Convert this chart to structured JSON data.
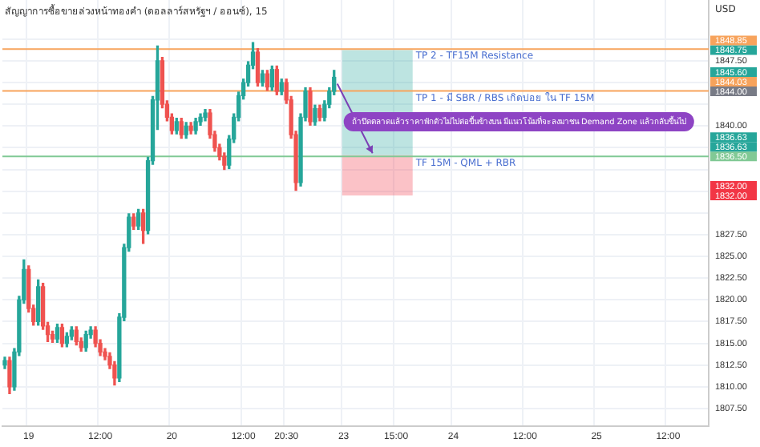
{
  "chart_data": {
    "type": "candlestick",
    "title": "สัญญาการซื้อขายล่วงหน้าทองคำ (ดอลลาร์สหรัฐฯ / ออนซ์), 15",
    "categories": [
      null,
      null,
      null,
      null,
      null,
      "19",
      null,
      null,
      null,
      null,
      null,
      null,
      null,
      null,
      null,
      null,
      null,
      null,
      null,
      null,
      "12:00",
      null,
      null,
      null,
      null,
      null,
      null,
      null,
      null,
      null,
      null,
      null,
      null,
      null,
      null,
      "20",
      null,
      null,
      null,
      null,
      null,
      null,
      null,
      null,
      null,
      null,
      null,
      null,
      null,
      null,
      "12:00",
      null,
      null,
      null,
      null,
      null,
      null,
      null,
      null,
      "20:30",
      null,
      null,
      null,
      null,
      null,
      null,
      null,
      null,
      null,
      null,
      null,
      "23",
      null,
      null,
      null,
      null,
      null,
      null,
      null,
      null,
      null,
      null,
      "15:00",
      null,
      null,
      null,
      null,
      null,
      null,
      null,
      null,
      null,
      null,
      null,
      "24",
      null,
      null,
      null,
      null,
      null,
      null,
      null,
      null,
      null,
      null,
      null,
      null,
      null,
      null,
      "12:00",
      null,
      null,
      null,
      null,
      null,
      null,
      null,
      null,
      null,
      null,
      null,
      null,
      null,
      null,
      "25",
      null,
      null,
      null,
      null,
      null,
      null,
      null,
      null,
      null,
      null,
      null,
      null,
      null,
      null,
      "12:00",
      null,
      null,
      null,
      null,
      null,
      null,
      null,
      null
    ],
    "ohlc": [
      [
        1812.5,
        1813.4,
        1812.1,
        1813.0
      ],
      [
        1813.0,
        1813.4,
        1809.2,
        1810.0
      ],
      [
        1810.0,
        1814.4,
        1809.6,
        1814.0
      ],
      [
        1814.0,
        1820.4,
        1813.6,
        1820.0
      ],
      [
        1820.0,
        1824.6,
        1819.6,
        1823.5
      ],
      [
        1823.5,
        1823.9,
        1818.6,
        1819.0
      ],
      [
        1819.0,
        1819.4,
        1817.1,
        1817.5
      ],
      [
        1817.5,
        1822.3,
        1817.1,
        1821.5
      ],
      [
        1821.5,
        1821.9,
        1816.6,
        1817.0
      ],
      [
        1817.0,
        1817.4,
        1815.2,
        1816.0
      ],
      [
        1816.0,
        1816.4,
        1815.1,
        1815.5
      ],
      [
        1815.5,
        1817.2,
        1815.1,
        1816.8
      ],
      [
        1816.8,
        1817.2,
        1814.6,
        1815.0
      ],
      [
        1815.0,
        1816.2,
        1814.6,
        1815.8
      ],
      [
        1815.8,
        1816.9,
        1815.4,
        1816.5
      ],
      [
        1816.5,
        1816.9,
        1814.8,
        1815.2
      ],
      [
        1815.2,
        1815.6,
        1814.1,
        1814.5
      ],
      [
        1814.5,
        1816.4,
        1814.1,
        1816.0
      ],
      [
        1816.0,
        1816.9,
        1815.6,
        1816.5
      ],
      [
        1816.5,
        1816.9,
        1814.6,
        1815.0
      ],
      [
        1815.0,
        1815.4,
        1813.6,
        1814.0
      ],
      [
        1814.0,
        1814.4,
        1813.1,
        1813.5
      ],
      [
        1813.5,
        1813.9,
        1812.1,
        1812.5
      ],
      [
        1812.5,
        1812.9,
        1810.2,
        1811.0
      ],
      [
        1811.0,
        1818.4,
        1810.6,
        1818.0
      ],
      [
        1818.0,
        1826.4,
        1817.6,
        1826.0
      ],
      [
        1826.0,
        1829.9,
        1825.6,
        1829.5
      ],
      [
        1829.5,
        1829.9,
        1828.1,
        1828.5
      ],
      [
        1828.5,
        1830.4,
        1828.1,
        1830.0
      ],
      [
        1830.0,
        1830.4,
        1826.5,
        1828.0
      ],
      [
        1828.0,
        1836.4,
        1827.6,
        1836.0
      ],
      [
        1836.0,
        1843.4,
        1835.6,
        1843.0
      ],
      [
        1843.0,
        1849.2,
        1839.6,
        1847.5
      ],
      [
        1847.5,
        1847.9,
        1842.1,
        1842.5
      ],
      [
        1842.5,
        1842.9,
        1840.6,
        1841.0
      ],
      [
        1841.0,
        1841.4,
        1839.1,
        1839.5
      ],
      [
        1839.5,
        1840.9,
        1839.1,
        1840.5
      ],
      [
        1840.5,
        1840.9,
        1838.6,
        1839.0
      ],
      [
        1839.0,
        1840.4,
        1838.6,
        1840.0
      ],
      [
        1840.0,
        1840.4,
        1839.1,
        1839.5
      ],
      [
        1839.5,
        1840.9,
        1839.1,
        1840.5
      ],
      [
        1840.5,
        1841.4,
        1840.1,
        1841.0
      ],
      [
        1841.0,
        1841.9,
        1840.6,
        1841.5
      ],
      [
        1841.5,
        1841.9,
        1838.6,
        1839.0
      ],
      [
        1839.0,
        1839.4,
        1837.1,
        1837.5
      ],
      [
        1837.5,
        1837.9,
        1836.1,
        1836.5
      ],
      [
        1836.5,
        1836.9,
        1835.0,
        1835.5
      ],
      [
        1835.5,
        1838.9,
        1835.1,
        1838.5
      ],
      [
        1838.5,
        1841.4,
        1838.1,
        1841.0
      ],
      [
        1841.0,
        1843.9,
        1840.6,
        1843.5
      ],
      [
        1843.5,
        1845.4,
        1843.1,
        1845.0
      ],
      [
        1845.0,
        1847.4,
        1844.6,
        1847.0
      ],
      [
        1847.0,
        1849.6,
        1846.6,
        1848.5
      ],
      [
        1848.5,
        1848.9,
        1844.6,
        1845.0
      ],
      [
        1845.0,
        1846.4,
        1844.6,
        1846.0
      ],
      [
        1846.0,
        1846.4,
        1844.1,
        1844.5
      ],
      [
        1844.5,
        1846.9,
        1844.1,
        1846.5
      ],
      [
        1846.5,
        1846.9,
        1843.6,
        1844.0
      ],
      [
        1844.0,
        1845.4,
        1843.6,
        1845.0
      ],
      [
        1845.0,
        1845.4,
        1842.6,
        1843.0
      ],
      [
        1843.0,
        1843.4,
        1838.6,
        1839.0
      ],
      [
        1839.0,
        1839.4,
        1832.6,
        1833.5
      ],
      [
        1833.5,
        1841.4,
        1833.1,
        1841.0
      ],
      [
        1841.0,
        1844.4,
        1840.6,
        1844.0
      ],
      [
        1844.0,
        1844.4,
        1840.1,
        1840.5
      ],
      [
        1840.5,
        1842.4,
        1840.1,
        1842.0
      ],
      [
        1842.0,
        1842.4,
        1840.6,
        1841.0
      ],
      [
        1841.0,
        1842.9,
        1840.6,
        1842.5
      ],
      [
        1842.5,
        1844.4,
        1842.1,
        1844.0
      ],
      [
        1844.0,
        1846.4,
        1843.6,
        1845.6
      ],
      null,
      null,
      null,
      null,
      null,
      null,
      null,
      null,
      null,
      null,
      null,
      null,
      null,
      null,
      null,
      null,
      null,
      null,
      null,
      null,
      null,
      null,
      null,
      null,
      null,
      null,
      null,
      null,
      null,
      null,
      null,
      null,
      null,
      null,
      null,
      null,
      null,
      null,
      null,
      null,
      null,
      null,
      null,
      null,
      null,
      null,
      null,
      null,
      null,
      null,
      null,
      null,
      null,
      null,
      null,
      null,
      null,
      null,
      null,
      null,
      null,
      null,
      null,
      null,
      null,
      null,
      null,
      null,
      null,
      null,
      null,
      null,
      null,
      null,
      null,
      null,
      null,
      null
    ],
    "ylim": [
      1805.5,
      1854.5
    ],
    "yticks": [
      {
        "value": 1807.5,
        "label": "1807.50"
      },
      {
        "value": 1810,
        "label": "1810.00"
      },
      {
        "value": 1812.5,
        "label": "1812.50"
      },
      {
        "value": 1815,
        "label": "1815.00"
      },
      {
        "value": 1817.5,
        "label": "1817.50"
      },
      {
        "value": 1820,
        "label": "1820.00"
      },
      {
        "value": 1822.5,
        "label": "1822.50"
      },
      {
        "value": 1825,
        "label": "1825.00"
      },
      {
        "value": 1827.5,
        "label": "1827.50"
      },
      {
        "value": 1830,
        "label": null
      },
      {
        "value": 1832.5,
        "label": null
      },
      {
        "value": 1835,
        "label": null
      },
      {
        "value": 1837.5,
        "label": null
      },
      {
        "value": 1840,
        "label": "1840.00"
      },
      {
        "value": 1842.5,
        "label": null
      },
      {
        "value": 1845,
        "label": null
      },
      {
        "value": 1847.5,
        "label": "1847.50"
      },
      {
        "value": 1850,
        "label": null
      }
    ],
    "grid": true,
    "legend": false,
    "ref_lines": [
      {
        "axis": "y",
        "value": 1848.85,
        "label": "TP 2 - TF15M Resistance",
        "color": "#f7a35c"
      },
      {
        "axis": "y",
        "value": 1844.03,
        "label": "TP 1 - มี SBR / RBS เกิดบ่อย ใน TF 15M",
        "color": "#f7a35c"
      },
      {
        "axis": "y",
        "value": 1836.5,
        "label": "TF 15M - QML + RBR",
        "color": "#81c995"
      }
    ],
    "bands": [
      {
        "axis": "y",
        "from": 1836.63,
        "to": 1848.75,
        "color": "#26a69a"
      },
      {
        "axis": "y",
        "from": 1832.0,
        "to": 1836.63,
        "color": "#f23645"
      }
    ],
    "annotations": [
      "USD",
      "ถ้าปิดตลาดแล้วราคาพักตัวไม่ไปต่อขึ้นข้างบน มีแนวโน้มที่จะลงมาชน Demand Zone แล้วกลับขึ้นไป",
      "1848.85",
      "1848.75",
      "1845.60",
      "1844.03",
      "1844.00",
      "1836.63",
      "1836.63",
      "1836.50",
      "1832.00",
      "1832.00"
    ]
  }
}
